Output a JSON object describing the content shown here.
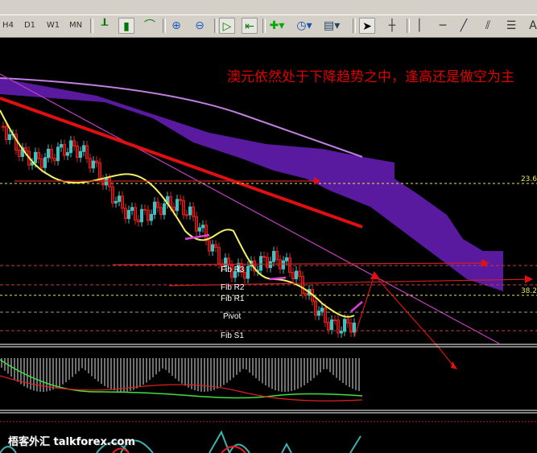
{
  "toolbar": {
    "timeframes": [
      "H4",
      "D1",
      "W1",
      "MN"
    ],
    "icons": [
      "bar-chart-icon",
      "candlestick-icon",
      "line-chart-icon",
      "zoom-in-icon",
      "zoom-out-icon",
      "autoscroll-icon",
      "chart-shift-icon",
      "new-indicator-icon",
      "periods-icon",
      "templates-icon",
      "cursor-icon",
      "crosshair-icon",
      "vertical-line-icon",
      "horizontal-line-icon",
      "trendline-icon",
      "equidistant-channel-icon",
      "fibonacci-icon",
      "text-icon"
    ],
    "text_tool": "A"
  },
  "chart": {
    "annotation": "澳元依然处于下降趋势之中，逢高还是做空为主",
    "pivot_labels": [
      "Fib R3",
      "Fib R2",
      "Fib R1",
      "Pivot",
      "Fib S1"
    ],
    "fib_levels": [
      "23.6",
      "38.2"
    ],
    "colors": {
      "background": "#000000",
      "bull_candle": "#40c0c0",
      "bear_candle": "#e02020",
      "cloud": "#5a1aa0",
      "ma": "#f0f060",
      "annotation": "#e00000"
    }
  },
  "watermark": {
    "text": "梧客外汇",
    "site": "talkforex.com"
  }
}
